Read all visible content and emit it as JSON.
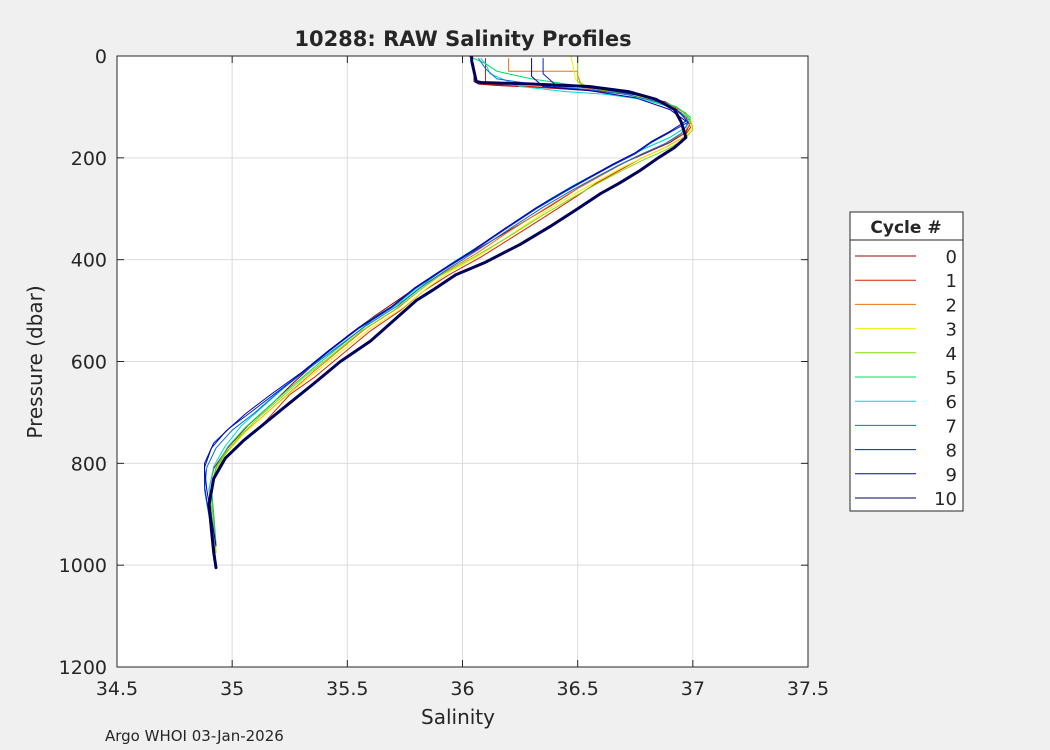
{
  "figure": {
    "footer": "Argo WHOI 03-Jan-2026",
    "colors": {
      "background": "#f0f0f0",
      "axes_bg": "#ffffff",
      "grid": "#dcdcdc",
      "text": "#262626"
    }
  },
  "chart_data": {
    "type": "line",
    "title": "10288: RAW Salinity Profiles",
    "xlabel": "Salinity",
    "ylabel": "Pressure (dbar)",
    "xlim": [
      34.5,
      37.5
    ],
    "ylim": [
      0,
      1200
    ],
    "y_reversed": true,
    "grid": true,
    "x_ticks": [
      "34.5",
      "35",
      "35.5",
      "36",
      "36.5",
      "37",
      "37.5"
    ],
    "y_ticks": [
      "0",
      "200",
      "400",
      "600",
      "800",
      "1000",
      "1200"
    ],
    "legend": {
      "title": "Cycle #",
      "position": "outside-right"
    },
    "series": [
      {
        "name": "0",
        "color": "#a00000",
        "line_width": 1,
        "salinity": [
          36.03,
          36.04,
          36.05,
          36.05,
          36.07,
          36.15,
          36.35,
          36.55,
          36.72,
          36.88,
          36.96,
          36.99,
          36.97,
          36.9,
          36.8,
          36.7,
          36.6,
          36.5,
          36.38,
          36.25,
          36.1,
          35.95,
          35.85,
          35.75,
          35.62,
          35.5,
          35.38,
          35.27,
          35.18,
          35.07,
          34.98,
          34.92,
          34.9,
          34.91,
          34.92,
          34.93
        ],
        "pressure": [
          0,
          5,
          20,
          50,
          55,
          58,
          62,
          68,
          75,
          90,
          110,
          130,
          150,
          170,
          190,
          210,
          235,
          260,
          295,
          330,
          370,
          410,
          440,
          470,
          510,
          550,
          595,
          640,
          680,
          725,
          770,
          810,
          850,
          900,
          950,
          1000
        ]
      },
      {
        "name": "1",
        "color": "#dc2000",
        "line_width": 1,
        "salinity": [
          36.1,
          36.1,
          36.1,
          36.1,
          36.2,
          36.4,
          36.6,
          36.78,
          36.9,
          36.97,
          36.99,
          36.96,
          36.88,
          36.78,
          36.68,
          36.58,
          36.48,
          36.36,
          36.22,
          36.08,
          35.94,
          35.83,
          35.73,
          35.6,
          35.48,
          35.36,
          35.25,
          35.2,
          35.15,
          35.08,
          35.0,
          34.93,
          34.91,
          34.92,
          34.93
        ],
        "pressure": [
          5,
          20,
          45,
          55,
          58,
          62,
          68,
          80,
          100,
          120,
          140,
          160,
          180,
          200,
          225,
          250,
          280,
          315,
          355,
          395,
          430,
          462,
          500,
          540,
          585,
          630,
          665,
          690,
          715,
          745,
          775,
          810,
          850,
          900,
          960
        ]
      },
      {
        "name": "2",
        "color": "#f07010",
        "line_width": 1,
        "salinity": [
          36.2,
          36.2,
          36.2,
          36.5,
          36.5,
          36.52,
          36.7,
          36.88,
          36.97,
          36.99,
          36.96,
          36.88,
          36.78,
          36.68,
          36.58,
          36.47,
          36.35,
          36.2,
          36.06,
          35.92,
          35.82,
          35.72,
          35.58,
          35.46,
          35.34,
          35.24,
          35.14,
          35.04,
          34.96,
          34.92,
          34.91,
          34.92,
          34.93
        ],
        "pressure": [
          5,
          20,
          30,
          30,
          38,
          62,
          72,
          92,
          112,
          132,
          152,
          172,
          192,
          215,
          240,
          268,
          302,
          345,
          388,
          425,
          458,
          495,
          535,
          580,
          625,
          665,
          705,
          745,
          785,
          825,
          870,
          920,
          975
        ]
      },
      {
        "name": "3",
        "color": "#f0f000",
        "line_width": 1,
        "salinity": [
          36.47,
          36.48,
          36.49,
          36.52,
          36.6,
          36.75,
          36.9,
          36.98,
          37.0,
          36.97,
          36.89,
          36.79,
          36.69,
          36.59,
          36.48,
          36.36,
          36.22,
          36.08,
          35.94,
          35.84,
          35.74,
          35.6,
          35.48,
          35.36,
          35.25,
          35.15,
          35.05,
          34.97,
          34.92,
          34.91,
          34.92,
          34.93
        ],
        "pressure": [
          0,
          20,
          45,
          60,
          66,
          78,
          98,
          118,
          138,
          158,
          178,
          198,
          220,
          245,
          272,
          305,
          348,
          390,
          425,
          458,
          495,
          535,
          578,
          622,
          662,
          702,
          742,
          782,
          820,
          865,
          915,
          970
        ]
      },
      {
        "name": "4",
        "color": "#80e000",
        "line_width": 1,
        "salinity": [
          36.5,
          36.5,
          36.5,
          36.55,
          36.65,
          36.8,
          36.93,
          36.99,
          37.0,
          36.96,
          36.88,
          36.78,
          36.68,
          36.58,
          36.47,
          36.35,
          36.2,
          36.05,
          35.9,
          35.8,
          35.7,
          35.56,
          35.44,
          35.32,
          35.22,
          35.12,
          35.03,
          34.96,
          34.92,
          34.91,
          34.92,
          34.93
        ],
        "pressure": [
          0,
          20,
          50,
          62,
          70,
          85,
          105,
          125,
          145,
          165,
          185,
          205,
          228,
          252,
          280,
          312,
          355,
          395,
          432,
          465,
          500,
          540,
          585,
          628,
          668,
          708,
          748,
          788,
          828,
          870,
          920,
          975
        ]
      },
      {
        "name": "5",
        "color": "#00e060",
        "line_width": 1,
        "salinity": [
          36.05,
          36.1,
          36.15,
          36.3,
          36.45,
          36.62,
          36.8,
          36.93,
          36.99,
          36.97,
          36.9,
          36.8,
          36.7,
          36.6,
          36.49,
          36.37,
          36.23,
          36.09,
          35.95,
          35.85,
          35.75,
          35.61,
          35.49,
          35.37,
          35.26,
          35.16,
          35.06,
          34.98,
          34.93,
          34.91,
          34.92,
          34.93
        ],
        "pressure": [
          5,
          15,
          30,
          45,
          55,
          65,
          80,
          100,
          120,
          140,
          160,
          180,
          202,
          226,
          252,
          284,
          325,
          368,
          408,
          442,
          478,
          518,
          562,
          606,
          648,
          688,
          728,
          768,
          808,
          852,
          905,
          962
        ]
      },
      {
        "name": "6",
        "color": "#00d8d8",
        "line_width": 1,
        "salinity": [
          36.08,
          36.1,
          36.12,
          36.25,
          36.45,
          36.62,
          36.78,
          36.9,
          36.98,
          36.97,
          36.9,
          36.8,
          36.7,
          36.6,
          36.49,
          36.37,
          36.23,
          36.09,
          35.95,
          35.84,
          35.74,
          35.6,
          35.47,
          35.35,
          35.24,
          35.14,
          35.04,
          34.97,
          34.92,
          34.9,
          34.91,
          34.92
        ],
        "pressure": [
          5,
          15,
          35,
          60,
          70,
          75,
          85,
          100,
          120,
          140,
          160,
          180,
          202,
          226,
          252,
          284,
          325,
          368,
          408,
          442,
          478,
          518,
          562,
          606,
          646,
          686,
          726,
          766,
          806,
          850,
          900,
          955
        ]
      },
      {
        "name": "7",
        "color": "#0070e0",
        "line_width": 1,
        "salinity": [
          36.07,
          36.1,
          36.15,
          36.35,
          36.55,
          36.72,
          36.86,
          36.95,
          36.98,
          36.95,
          36.88,
          36.78,
          36.68,
          36.58,
          36.47,
          36.35,
          36.21,
          36.07,
          35.93,
          35.82,
          35.72,
          35.58,
          35.45,
          35.32,
          35.2,
          35.1,
          35.0,
          34.93,
          34.89,
          34.88,
          34.9,
          34.92
        ],
        "pressure": [
          5,
          25,
          45,
          58,
          66,
          76,
          92,
          112,
          132,
          152,
          172,
          192,
          214,
          238,
          265,
          297,
          338,
          380,
          420,
          454,
          490,
          530,
          574,
          618,
          660,
          700,
          735,
          770,
          808,
          852,
          905,
          960
        ]
      },
      {
        "name": "8",
        "color": "#0020d8",
        "line_width": 1,
        "salinity": [
          36.35,
          36.35,
          36.4,
          36.6,
          36.8,
          36.93,
          36.98,
          36.9,
          36.82,
          36.75,
          36.65,
          36.55,
          36.44,
          36.32,
          36.18,
          36.04,
          35.9,
          35.79,
          35.69,
          35.55,
          35.42,
          35.3,
          35.18,
          35.08,
          34.99,
          34.92,
          34.88,
          34.88,
          34.9,
          34.92
        ],
        "pressure": [
          5,
          35,
          55,
          65,
          80,
          105,
          130,
          150,
          170,
          192,
          215,
          240,
          268,
          300,
          342,
          385,
          425,
          458,
          495,
          535,
          580,
          624,
          665,
          700,
          730,
          760,
          800,
          845,
          900,
          955
        ]
      },
      {
        "name": "9",
        "color": "#0000a8",
        "line_width": 1,
        "salinity": [
          36.3,
          36.3,
          36.35,
          36.55,
          36.75,
          36.9,
          36.97,
          36.9,
          36.82,
          36.75,
          36.65,
          36.55,
          36.44,
          36.32,
          36.18,
          36.04,
          35.9,
          35.79,
          35.69,
          35.55,
          35.42,
          35.3,
          35.17,
          35.06,
          34.97,
          34.91,
          34.88,
          34.89,
          34.91,
          34.93
        ],
        "pressure": [
          5,
          40,
          60,
          68,
          82,
          105,
          128,
          148,
          168,
          190,
          213,
          238,
          266,
          298,
          340,
          383,
          423,
          456,
          493,
          533,
          578,
          622,
          664,
          702,
          738,
          770,
          808,
          852,
          905,
          962
        ]
      },
      {
        "name": "10",
        "color": "#00005a",
        "line_width": 3,
        "salinity": [
          36.04,
          36.04,
          36.05,
          36.06,
          36.08,
          36.3,
          36.55,
          36.72,
          36.84,
          36.92,
          36.95,
          36.97,
          36.92,
          36.85,
          36.77,
          36.68,
          36.6,
          36.5,
          36.38,
          36.25,
          36.1,
          35.97,
          35.87,
          35.8,
          35.7,
          35.6,
          35.47,
          35.35,
          35.24,
          35.14,
          35.05,
          34.97,
          34.92,
          34.9,
          34.91,
          34.92,
          34.93
        ],
        "pressure": [
          0,
          10,
          30,
          50,
          52,
          55,
          60,
          70,
          85,
          105,
          130,
          160,
          180,
          200,
          225,
          250,
          270,
          300,
          335,
          370,
          405,
          430,
          460,
          480,
          520,
          560,
          600,
          645,
          685,
          722,
          755,
          790,
          830,
          880,
          930,
          975,
          1005
        ]
      }
    ]
  }
}
